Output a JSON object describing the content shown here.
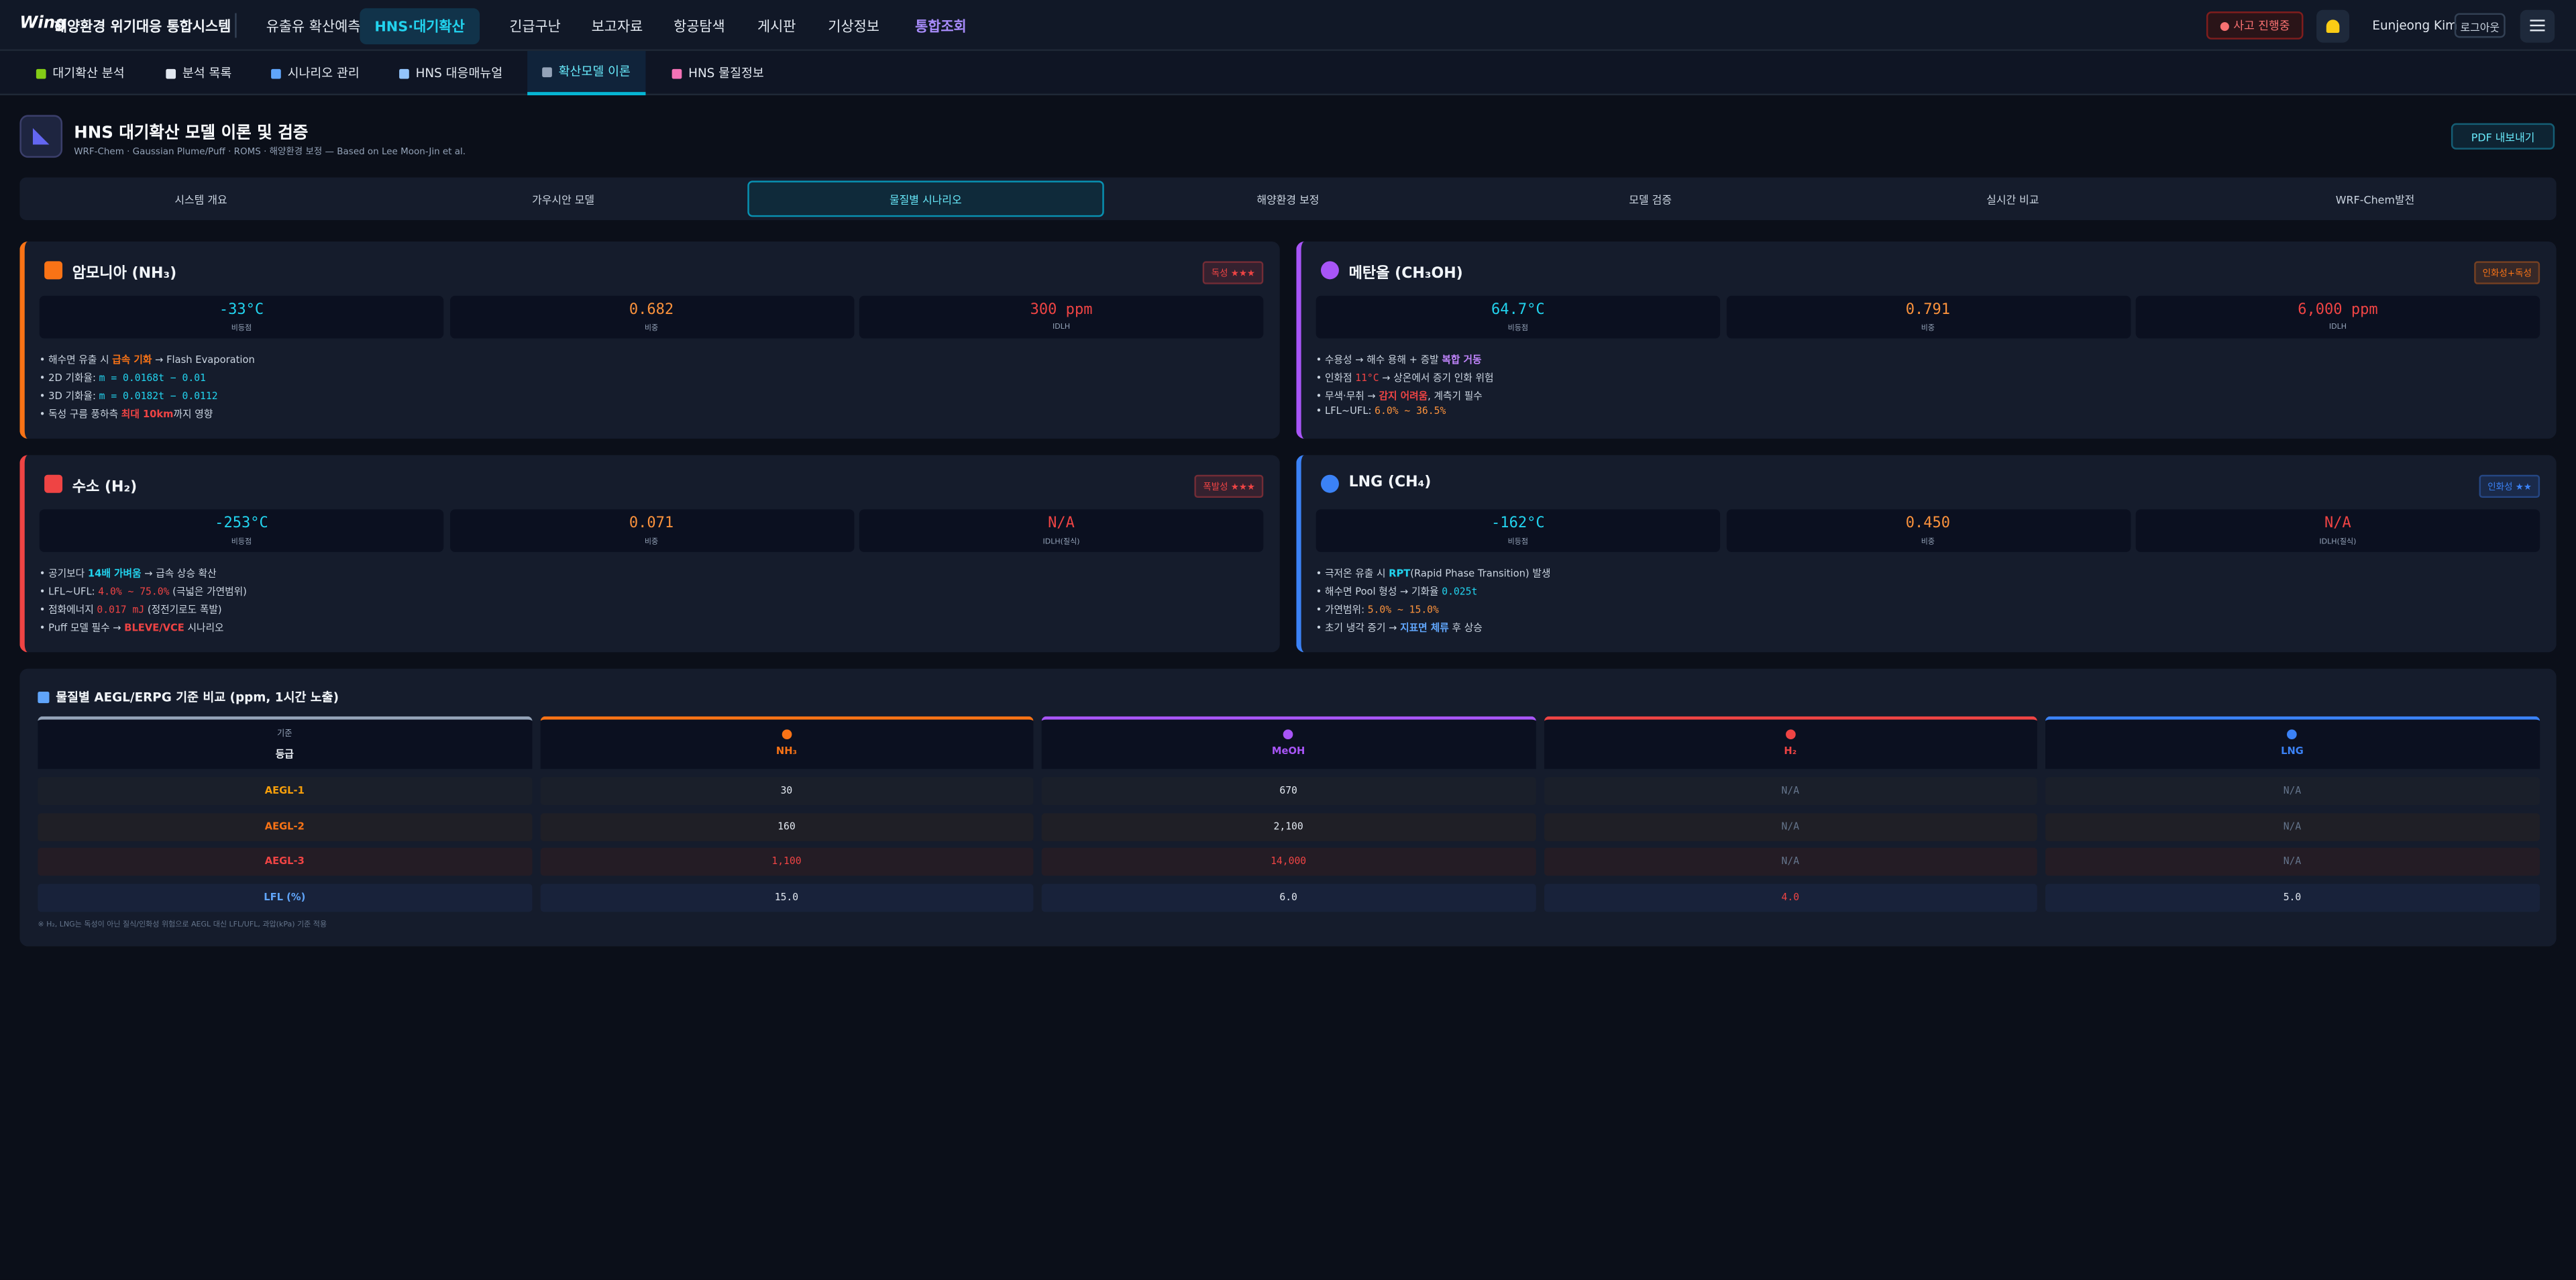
{
  "nav": {
    "logo": "Wing",
    "system_name": "해양환경 위기대응 통합시스템",
    "menu": [
      "유출유 확산예측",
      "HNS·대기확산",
      "긴급구난",
      "보고자료",
      "항공탐색",
      "게시판",
      "기상정보",
      "통합조회"
    ],
    "active_menu": 1,
    "accent_menu": 7,
    "alert": "● 사고 진행중",
    "user": "Eunjeong Kim",
    "logout": "로그아웃"
  },
  "subnav": {
    "tabs": [
      "대기확산 분석",
      "분석 목록",
      "시나리오 관리",
      "HNS 대응매뉴얼",
      "확산모델 이론",
      "HNS 물질정보"
    ],
    "active": 4
  },
  "header": {
    "title": "HNS 대기확산 모델 이론 및 검증",
    "subtitle": "WRF-Chem · Gaussian Plume/Puff · ROMS · 해양환경 보정 — Based on Lee Moon-Jin et al.",
    "button": "PDF 내보내기"
  },
  "tabs": {
    "items": [
      "시스템 개요",
      "가우시안 모델",
      "물질별 시나리오",
      "해양환경 보정",
      "모델 검증",
      "실시간 비교",
      "WRF-Chem발전"
    ],
    "active": 2
  },
  "cards": [
    {
      "name": "암모니아 (NH₃)",
      "color": "#f97316",
      "badge": "독성 ★★★",
      "badge_color": "#ef4444",
      "stats": [
        {
          "value": "-33°C",
          "label": "비등점",
          "color": "#22d3ee"
        },
        {
          "value": "0.682",
          "label": "비중",
          "color": "#fb923c"
        },
        {
          "value": "300 ppm",
          "label": "IDLH",
          "color": "#ef4444"
        }
      ],
      "bullets": [
        [
          {
            "text": "해수면 유출 시 "
          },
          {
            "text": "급속 기화",
            "color": "#f97316",
            "bold": true
          },
          {
            "text": " → Flash Evaporation"
          }
        ],
        [
          {
            "text": "2D 기화율: "
          },
          {
            "text": "m = 0.0168t − 0.01",
            "color": "#22d3ee",
            "mono": true
          }
        ],
        [
          {
            "text": "3D 기화율: "
          },
          {
            "text": "m = 0.0182t − 0.0112",
            "color": "#22d3ee",
            "mono": true
          }
        ],
        [
          {
            "text": "독성 구름 풍하측 "
          },
          {
            "text": "최대 10km",
            "color": "#ef4444",
            "bold": true
          },
          {
            "text": "까지 영향"
          }
        ]
      ]
    },
    {
      "name": "메탄올 (CH₃OH)",
      "color": "#a855f7",
      "badge": "인화성+독성",
      "badge_color": "#f97316",
      "stats": [
        {
          "value": "64.7°C",
          "label": "비등점",
          "color": "#22d3ee"
        },
        {
          "value": "0.791",
          "label": "비중",
          "color": "#fb923c"
        },
        {
          "value": "6,000 ppm",
          "label": "IDLH",
          "color": "#ef4444"
        }
      ],
      "bullets": [
        [
          {
            "text": "수용성 → 해수 용해 + 증발 "
          },
          {
            "text": "복합 거동",
            "color": "#c084fc",
            "bold": true
          }
        ],
        [
          {
            "text": "인화점 "
          },
          {
            "text": "11°C",
            "color": "#ef4444",
            "mono": true
          },
          {
            "text": " → 상온에서 증기 인화 위험"
          }
        ],
        [
          {
            "text": "무색·무취 → "
          },
          {
            "text": "감지 어려움",
            "color": "#ef4444",
            "bold": true
          },
          {
            "text": ", 계측기 필수"
          }
        ],
        [
          {
            "text": "LFL~UFL: "
          },
          {
            "text": "6.0% ~ 36.5%",
            "color": "#fb923c",
            "mono": true
          }
        ]
      ]
    },
    {
      "name": "수소 (H₂)",
      "color": "#ef4444",
      "badge": "폭발성 ★★★",
      "badge_color": "#ef4444",
      "stats": [
        {
          "value": "-253°C",
          "label": "비등점",
          "color": "#22d3ee"
        },
        {
          "value": "0.071",
          "label": "비중",
          "color": "#fb923c"
        },
        {
          "value": "N/A",
          "label": "IDLH(질식)",
          "color": "#ef4444"
        }
      ],
      "bullets": [
        [
          {
            "text": "공기보다 "
          },
          {
            "text": "14배 가벼움",
            "color": "#22d3ee",
            "bold": true
          },
          {
            "text": " → 급속 상승 확산"
          }
        ],
        [
          {
            "text": "LFL~UFL: "
          },
          {
            "text": "4.0% ~ 75.0%",
            "color": "#ef4444",
            "mono": true
          },
          {
            "text": " (극넓은 가연범위)"
          }
        ],
        [
          {
            "text": "점화에너지 "
          },
          {
            "text": "0.017 mJ",
            "color": "#ef4444",
            "mono": true
          },
          {
            "text": " (정전기로도 폭발)"
          }
        ],
        [
          {
            "text": "Puff 모델 필수 → "
          },
          {
            "text": "BLEVE/VCE",
            "color": "#ef4444",
            "bold": true
          },
          {
            "text": " 시나리오"
          }
        ]
      ]
    },
    {
      "name": "LNG (CH₄)",
      "color": "#3b82f6",
      "badge": "인화성 ★★",
      "badge_color": "#3b82f6",
      "stats": [
        {
          "value": "-162°C",
          "label": "비등점",
          "color": "#22d3ee"
        },
        {
          "value": "0.450",
          "label": "비중",
          "color": "#fb923c"
        },
        {
          "value": "N/A",
          "label": "IDLH(질식)",
          "color": "#ef4444"
        }
      ],
      "bullets": [
        [
          {
            "text": "극저온 유출 시 "
          },
          {
            "text": "RPT",
            "color": "#22d3ee",
            "bold": true
          },
          {
            "text": "(Rapid Phase Transition) 발생"
          }
        ],
        [
          {
            "text": "해수면 Pool 형성 → 기화율 "
          },
          {
            "text": "0.025t",
            "color": "#22d3ee",
            "mono": true
          }
        ],
        [
          {
            "text": "가연범위: "
          },
          {
            "text": "5.0% ~ 15.0%",
            "color": "#fb923c",
            "mono": true
          }
        ],
        [
          {
            "text": "초기 냉각 증기 → "
          },
          {
            "text": "지표면 체류",
            "color": "#60a5fa",
            "bold": true
          },
          {
            "text": " 후 상승"
          }
        ]
      ]
    }
  ],
  "table": {
    "title": "물질별 AEGL/ERPG 기준 비교 (ppm, 1시간 노출)",
    "columns": [
      {
        "top": "기준",
        "name": "등급",
        "color": "#94a3b8"
      },
      {
        "name": "NH₃",
        "color": "#f97316"
      },
      {
        "name": "MeOH",
        "color": "#a855f7"
      },
      {
        "name": "H₂",
        "color": "#ef4444"
      },
      {
        "name": "LNG",
        "color": "#3b82f6"
      }
    ],
    "rows": [
      {
        "label": "AEGL-1",
        "color": "#f59e0b",
        "bg": "#1a1f2a",
        "cells": [
          {
            "text": "30"
          },
          {
            "text": "670"
          },
          {
            "text": "N/A",
            "color": "#64748b"
          },
          {
            "text": "N/A",
            "color": "#64748b"
          }
        ]
      },
      {
        "label": "AEGL-2",
        "color": "#f97316",
        "bg": "#1f1f26",
        "cells": [
          {
            "text": "160"
          },
          {
            "text": "2,100"
          },
          {
            "text": "N/A",
            "color": "#64748b"
          },
          {
            "text": "N/A",
            "color": "#64748b"
          }
        ]
      },
      {
        "label": "AEGL-3",
        "color": "#ef4444",
        "bg": "#241c25",
        "cells": [
          {
            "text": "1,100",
            "color": "#ef4444"
          },
          {
            "text": "14,000",
            "color": "#ef4444"
          },
          {
            "text": "N/A",
            "color": "#64748b"
          },
          {
            "text": "N/A",
            "color": "#64748b"
          }
        ]
      },
      {
        "label": "LFL (%)",
        "color": "#60a5fa",
        "bg": "#18223a",
        "cells": [
          {
            "text": "15.0"
          },
          {
            "text": "6.0"
          },
          {
            "text": "4.0",
            "color": "#ef4444"
          },
          {
            "text": "5.0"
          }
        ]
      }
    ],
    "note": "※ H₂, LNG는 독성이 아닌 질식/인화성 위험으로 AEGL 대신 LFL/UFL, 과압(kPa) 기준 적용"
  }
}
